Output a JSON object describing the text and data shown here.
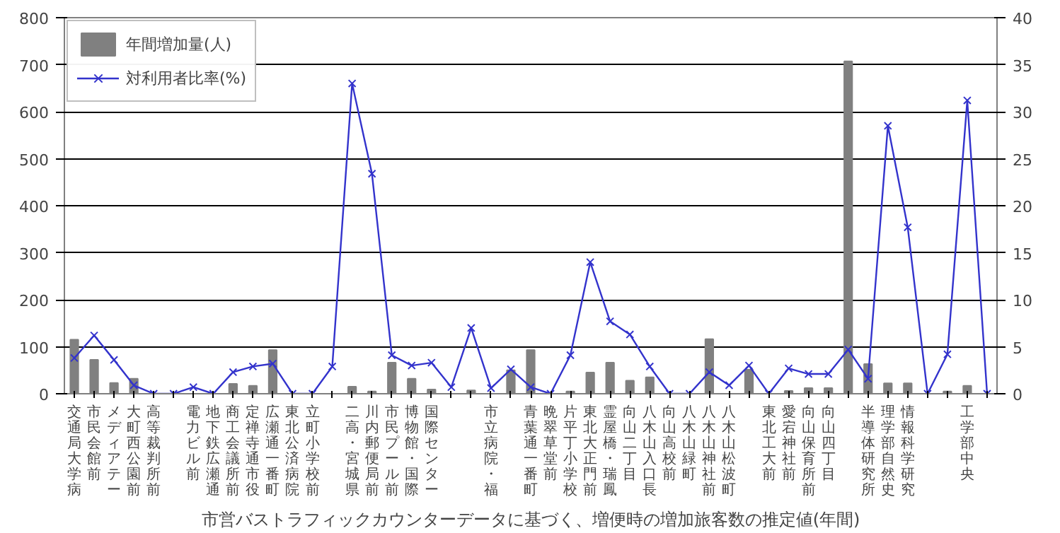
{
  "chart_data": {
    "type": "bar",
    "xlabel": "市営バストラフィックカウンターデータに基づく、増便時の増加旅客数の推定値(年間)",
    "categories": [
      "交通局大学病",
      "市民会館前",
      "メディアテー",
      "大町西公園前",
      "高等裁判所前",
      null,
      "電力ビル前",
      "地下鉄広瀬通",
      "商工会議所前",
      "定禅寺通市役",
      "広瀬通一番町",
      "東北公済病院",
      "立町小学校前",
      null,
      "二高・宮城県",
      "川内郵便局前",
      "市民プール前",
      "博物館・国際",
      "国際センター",
      null,
      null,
      "市立病院・福",
      null,
      "青葉通一番町",
      "晩翠草堂前",
      "片平丁小学校",
      "東北大正門前",
      "霊屋橋・瑞鳳",
      "向山二丁目",
      "八木山入口長",
      "向山高校前",
      "八木山緑町",
      "八木山神社前",
      "八木山松波町",
      null,
      "東北工大前",
      "愛宕神社前",
      "向山保育所前",
      "向山四丁目",
      null,
      "半導体研究所",
      "理学部自然史",
      "情報科学研究",
      null,
      null,
      "工学部中央",
      null
    ],
    "series": [
      {
        "name": "年間増加量(人)",
        "color": "#808080",
        "values": [
          115,
          72,
          23,
          32,
          0,
          0,
          0,
          0,
          21,
          17,
          93,
          0,
          0,
          0,
          15,
          5,
          66,
          32,
          9,
          0,
          7,
          0,
          50,
          93,
          0,
          5,
          45,
          66,
          28,
          35,
          0,
          0,
          116,
          0,
          51,
          0,
          6,
          12,
          12,
          707,
          63,
          22,
          22,
          0,
          5,
          17,
          0
        ]
      },
      {
        "name": "対利用者比率(%)",
        "type": "line",
        "axis": "y2",
        "color": "#3333cc",
        "values": [
          3.8,
          6.2,
          3.6,
          0.9,
          0,
          0,
          0.7,
          0,
          2.3,
          2.9,
          3.2,
          0,
          0,
          2.9,
          33.0,
          23.4,
          4.1,
          3.0,
          3.3,
          0.7,
          7.0,
          0.6,
          2.6,
          0.7,
          0,
          4.1,
          14.0,
          7.7,
          6.3,
          2.9,
          0,
          0,
          2.3,
          0.9,
          3.0,
          0,
          2.7,
          2.1,
          2.1,
          4.7,
          1.6,
          28.5,
          17.7,
          0,
          4.2,
          31.2,
          0
        ]
      }
    ],
    "ylim": [
      0,
      800
    ],
    "yticks": [
      0,
      100,
      200,
      300,
      400,
      500,
      600,
      700,
      800
    ],
    "y2lim": [
      0,
      40
    ],
    "y2ticks": [
      0,
      5,
      10,
      15,
      20,
      25,
      30,
      35,
      40
    ],
    "grid": "y",
    "legend": "top left",
    "marker": "cross"
  }
}
